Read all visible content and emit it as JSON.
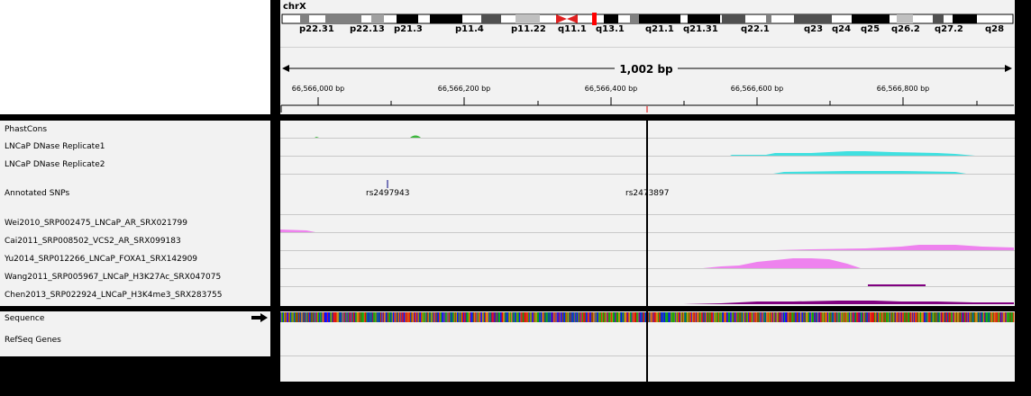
{
  "header": {
    "chromosome": "chrX",
    "span_label": "1,002 bp"
  },
  "ideogram": {
    "bands": [
      "p22.31",
      "p22.13",
      "p21.3",
      "p11.4",
      "p11.22",
      "q11.1",
      "q13.1",
      "q21.1",
      "q21.31",
      "q22.1",
      "q23",
      "q24",
      "q25",
      "q26.2",
      "q27.2",
      "q28"
    ]
  },
  "ruler": {
    "ticks": [
      "66,566,000 bp",
      "66,566,200 bp",
      "66,566,400 bp",
      "66,566,600 bp",
      "66,566,800 bp"
    ]
  },
  "tracks": {
    "phastcons": "PhastCons",
    "dnase1": "LNCaP DNase Replicate1",
    "dnase2": "LNCaP DNase Replicate2",
    "snps": "Annotated SNPs",
    "wei": "Wei2010_SRP002475_LNCaP_AR_SRX021799",
    "cai": "Cai2011_SRP008502_VCS2_AR_SRX099183",
    "yu": "Yu2014_SRP012266_LNCaP_FOXA1_SRX142909",
    "wang": "Wang2011_SRP005967_LNCaP_H3K27Ac_SRX047075",
    "chen": "Chen2013_SRP022924_LNCaP_H3K4me3_SRX283755"
  },
  "snps": [
    "rs2497943",
    "rs2473897"
  ],
  "lower_tracks": {
    "sequence": "Sequence",
    "refseq": "RefSeq Genes"
  },
  "colors": {
    "phastcons": "#3cb83c",
    "dnase": "#40e0e0",
    "chip": "#ee82ee",
    "h3k4me3": "#800080",
    "centromere": "#e02020"
  }
}
